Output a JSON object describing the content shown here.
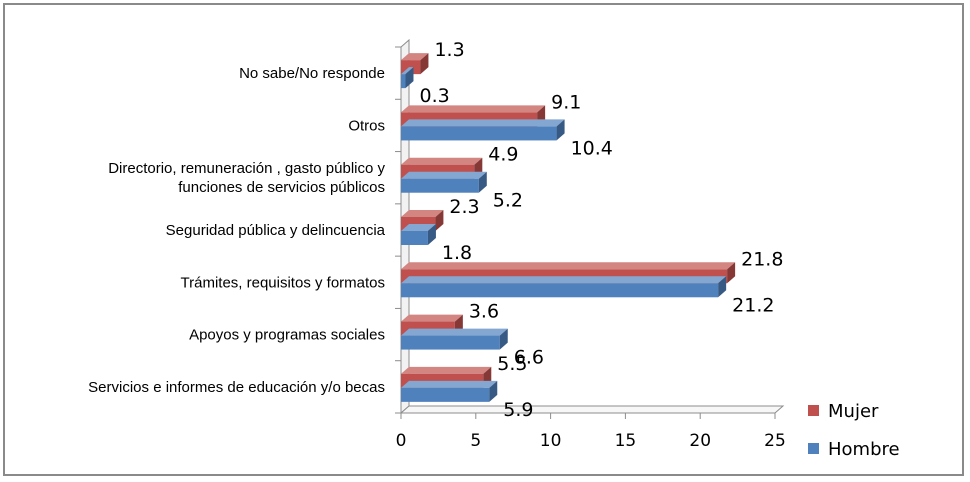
{
  "chart_data": {
    "type": "bar",
    "orientation": "horizontal",
    "categories": [
      [
        "Servicios e informes de educación  y/o becas"
      ],
      [
        "Apoyos y programas sociales"
      ],
      [
        "Trámites, requisitos y formatos"
      ],
      [
        "Seguridad pública y delincuencia"
      ],
      [
        "Directorio, remuneración , gasto público y",
        "funciones de servicios públicos"
      ],
      [
        "Otros"
      ],
      [
        "No sabe/No responde"
      ]
    ],
    "series": [
      {
        "name": "Mujer",
        "color": "#c0504d",
        "values": [
          5.5,
          3.6,
          21.8,
          2.3,
          4.9,
          9.1,
          1.3
        ]
      },
      {
        "name": "Hombre",
        "color": "#4f81bd",
        "values": [
          5.9,
          6.6,
          21.2,
          1.8,
          5.2,
          10.4,
          0.3
        ]
      }
    ],
    "xlim": [
      0,
      25
    ],
    "xticks": [
      0,
      5,
      10,
      15,
      20,
      25
    ],
    "legend_position": "bottom-right",
    "grid": false
  }
}
